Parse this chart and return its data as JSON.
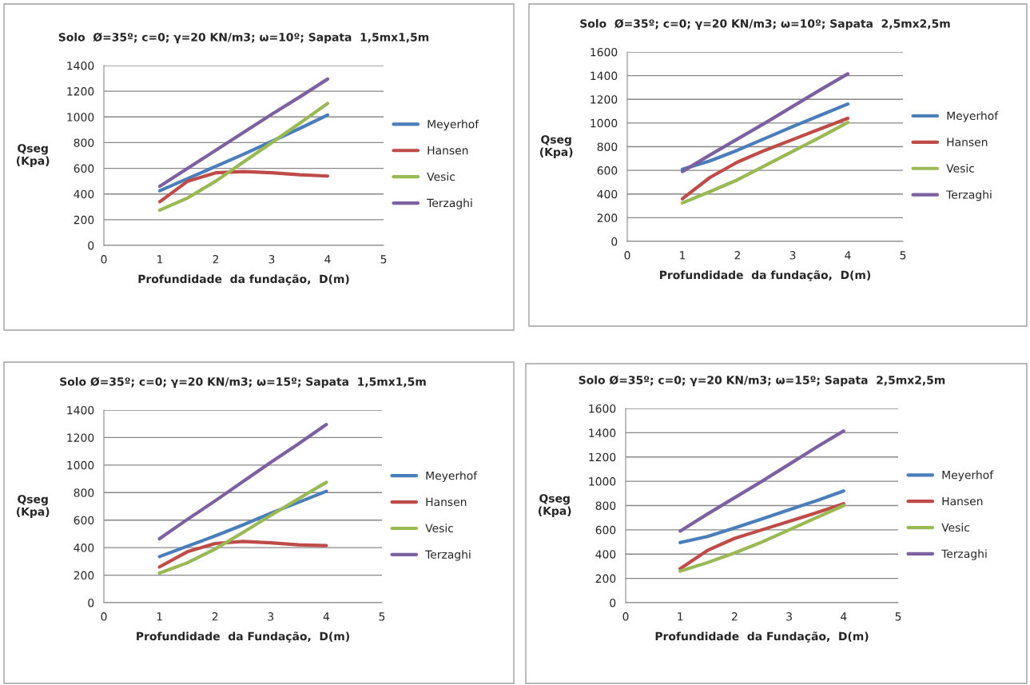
{
  "chart_data": [
    {
      "type": "line",
      "title": "Solo  Ø=35º; c=0; γ=20 KN/m3; ω=10º; Sapata  1,5mx1,5m",
      "xlabel": "Profundidade  da fundação,  D(m)",
      "ylabel": "Qseg\n(Kpa)",
      "x": [
        1,
        1.5,
        2,
        2.5,
        3,
        3.5,
        4
      ],
      "xlim": [
        0,
        5
      ],
      "xticks": [
        0,
        1,
        2,
        3,
        4,
        5
      ],
      "ylim": [
        0,
        1400
      ],
      "yticks": [
        0,
        200,
        400,
        600,
        800,
        1000,
        1200,
        1400
      ],
      "grid": "y",
      "legend": "right",
      "marker": "none",
      "line_style": "solid",
      "series": [
        {
          "name": "Meyerhof",
          "color": "#4a7ebb",
          "values": [
            425,
            520,
            615,
            710,
            810,
            910,
            1015
          ]
        },
        {
          "name": "Hansen",
          "color": "#be4b48",
          "values": [
            340,
            500,
            565,
            575,
            565,
            550,
            540
          ]
        },
        {
          "name": "Vesic",
          "color": "#98b954",
          "values": [
            275,
            370,
            500,
            650,
            800,
            950,
            1105
          ]
        },
        {
          "name": "Terzaghi",
          "color": "#7d60a0",
          "values": [
            460,
            600,
            740,
            880,
            1020,
            1155,
            1295
          ]
        }
      ]
    },
    {
      "type": "line",
      "title": "Solo  Ø=35º; c=0; γ=20 KN/m3; ω=10º; Sapata  2,5mx2,5m",
      "xlabel": "Profundidade  da fundação,  D(m)",
      "ylabel": "Qseg\n(Kpa)",
      "x": [
        1,
        1.5,
        2,
        2.5,
        3,
        3.5,
        4
      ],
      "xlim": [
        0,
        5
      ],
      "xticks": [
        0,
        1,
        2,
        3,
        4,
        5
      ],
      "ylim": [
        0,
        1600
      ],
      "yticks": [
        0,
        200,
        400,
        600,
        800,
        1000,
        1200,
        1400,
        1600
      ],
      "grid": "y",
      "legend": "right",
      "marker": "none",
      "line_style": "solid",
      "series": [
        {
          "name": "Meyerhof",
          "color": "#4a7ebb",
          "values": [
            610,
            680,
            770,
            870,
            970,
            1065,
            1160
          ]
        },
        {
          "name": "Hansen",
          "color": "#be4b48",
          "values": [
            360,
            540,
            670,
            770,
            860,
            950,
            1040
          ]
        },
        {
          "name": "Vesic",
          "color": "#98b954",
          "values": [
            325,
            420,
            520,
            640,
            760,
            880,
            1005
          ]
        },
        {
          "name": "Terzaghi",
          "color": "#7d60a0",
          "values": [
            590,
            730,
            865,
            1000,
            1140,
            1280,
            1415
          ]
        }
      ]
    },
    {
      "type": "line",
      "title": "Solo Ø=35º; c=0; γ=20 KN/m3; ω=15º; Sapata  1,5mx1,5m",
      "xlabel": "Profundidade  da Fundação,  D(m)",
      "ylabel": "Qseg\n(Kpa)",
      "x": [
        1,
        1.5,
        2,
        2.5,
        3,
        3.5,
        4
      ],
      "xlim": [
        0,
        5
      ],
      "xticks": [
        0,
        1,
        2,
        3,
        4,
        5
      ],
      "ylim": [
        0,
        1400
      ],
      "yticks": [
        0,
        200,
        400,
        600,
        800,
        1000,
        1200,
        1400
      ],
      "grid": "y",
      "legend": "right",
      "marker": "none",
      "line_style": "solid",
      "series": [
        {
          "name": "Meyerhof",
          "color": "#4a7ebb",
          "values": [
            335,
            410,
            485,
            565,
            650,
            730,
            810
          ]
        },
        {
          "name": "Hansen",
          "color": "#be4b48",
          "values": [
            260,
            370,
            430,
            445,
            435,
            420,
            415
          ]
        },
        {
          "name": "Vesic",
          "color": "#98b954",
          "values": [
            215,
            290,
            390,
            510,
            635,
            755,
            875
          ]
        },
        {
          "name": "Terzaghi",
          "color": "#7d60a0",
          "values": [
            465,
            605,
            740,
            880,
            1020,
            1155,
            1295
          ]
        }
      ]
    },
    {
      "type": "line",
      "title": "Solo Ø=35º; c=0; γ=20 KN/m3; ω=15º; Sapata  2,5mx2,5m",
      "xlabel": "Profundidade  da Fundação,  D(m)",
      "ylabel": "Qseg\n(Kpa)",
      "x": [
        1,
        1.5,
        2,
        2.5,
        3,
        3.5,
        4
      ],
      "xlim": [
        0,
        5
      ],
      "xticks": [
        0,
        1,
        2,
        3,
        4,
        5
      ],
      "ylim": [
        0,
        1600
      ],
      "yticks": [
        0,
        200,
        400,
        600,
        800,
        1000,
        1200,
        1400,
        1600
      ],
      "grid": "y",
      "legend": "right",
      "marker": "none",
      "line_style": "solid",
      "series": [
        {
          "name": "Meyerhof",
          "color": "#4a7ebb",
          "values": [
            495,
            545,
            615,
            690,
            765,
            840,
            920
          ]
        },
        {
          "name": "Hansen",
          "color": "#be4b48",
          "values": [
            280,
            430,
            530,
            600,
            670,
            740,
            815
          ]
        },
        {
          "name": "Vesic",
          "color": "#98b954",
          "values": [
            260,
            330,
            410,
            500,
            600,
            700,
            800
          ]
        },
        {
          "name": "Terzaghi",
          "color": "#7d60a0",
          "values": [
            590,
            730,
            865,
            1000,
            1140,
            1280,
            1415
          ]
        }
      ]
    }
  ]
}
